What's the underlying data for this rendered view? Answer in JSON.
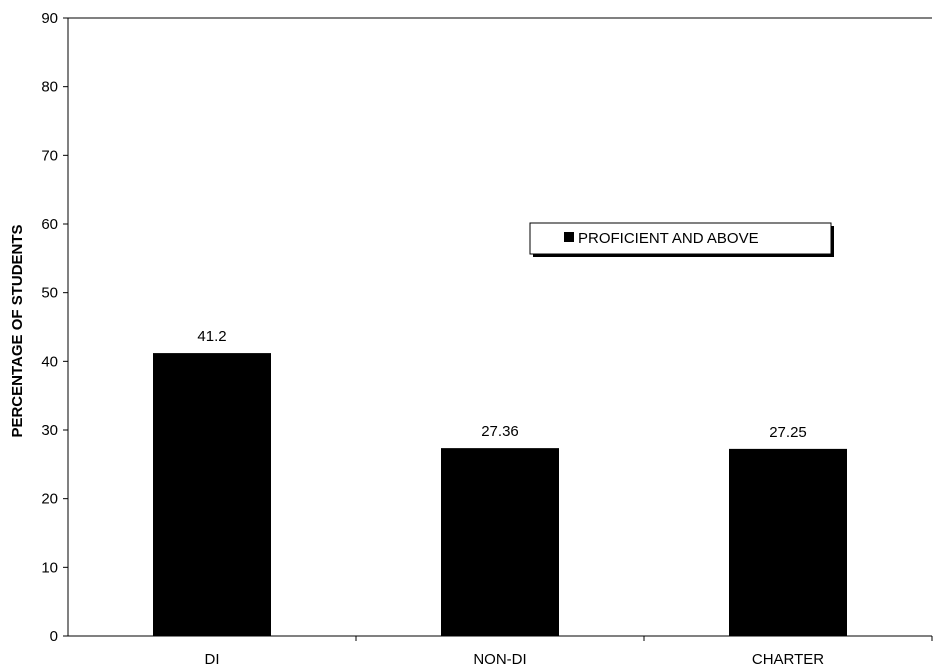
{
  "chart_data": {
    "type": "bar",
    "categories": [
      "DI",
      "NON-DI",
      "CHARTER"
    ],
    "series": [
      {
        "name": "PROFICIENT AND ABOVE",
        "values": [
          41.2,
          27.36,
          27.25
        ],
        "color": "#000000"
      }
    ],
    "data_labels": [
      "41.2",
      "27.36",
      "27.25"
    ],
    "ylabel": "PERCENTAGE OF STUDENTS",
    "xlabel": "",
    "ylim": [
      0,
      90
    ],
    "yticks": [
      0,
      10,
      20,
      30,
      40,
      50,
      60,
      70,
      80,
      90
    ],
    "grid": false,
    "legend_position": "center-right"
  }
}
